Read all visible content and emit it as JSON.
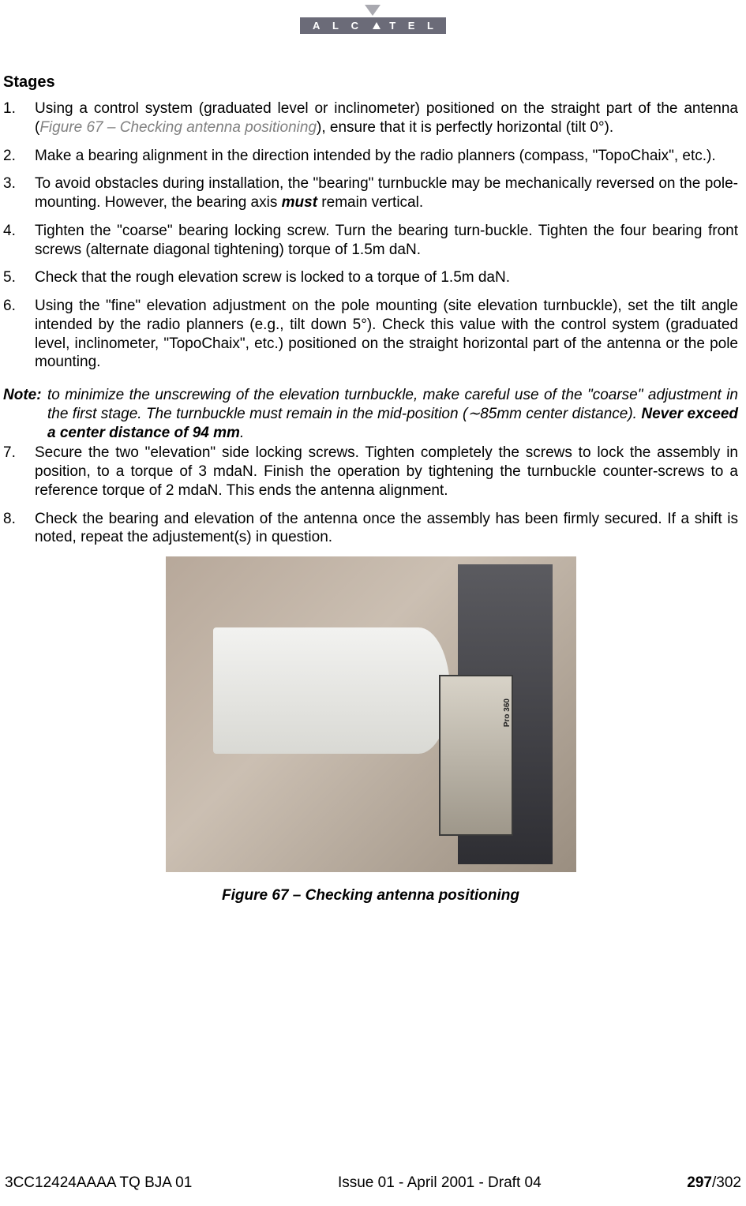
{
  "logo": {
    "text": "A L C T E L"
  },
  "section_heading": "Stages",
  "list": [
    {
      "num": "1.",
      "pre": "Using a control system (graduated level or inclinometer) positioned on the straight part of the antenna (",
      "figref": "Figure 67 – Checking antenna positioning",
      "post": "), ensure that it is perfectly horizontal (tilt 0°)."
    },
    {
      "num": "2.",
      "text": "Make a bearing alignment in the direction intended by the radio planners (compass, \"TopoChaix\", etc.)."
    },
    {
      "num": "3.",
      "pre": "To avoid obstacles during installation, the \"bearing\" turnbuckle may be mechanically reversed on the pole-mounting. However, the bearing axis ",
      "must": "must",
      "post": " remain vertical."
    },
    {
      "num": "4.",
      "text": "Tighten the \"coarse\" bearing locking screw. Turn the bearing turn-buckle. Tighten the four bearing front screws (alternate diagonal tightening) torque of 1.5m daN."
    },
    {
      "num": "5.",
      "text": "Check that the rough elevation screw is locked to a torque of 1.5m daN."
    },
    {
      "num": "6.",
      "text": "Using the \"fine\" elevation adjustment on the pole mounting (site elevation turnbuckle), set the tilt angle intended by the radio planners (e.g., tilt down 5°). Check this value with the control system (graduated level, inclinometer, \"TopoChaix\", etc.) positioned on the straight horizontal part of the antenna or the pole mounting."
    }
  ],
  "note": {
    "label": "Note:",
    "body_pre": " to minimize the unscrewing of the elevation turnbuckle, make careful use of the \"coarse\" adjustment in the first stage. The turnbuckle must remain in the mid-position (∼85mm center distance). ",
    "never": "Never exceed a center distance of 94 mm",
    "body_post": "."
  },
  "list2": [
    {
      "num": "7.",
      "text": "Secure the two \"elevation\" side locking screws. Tighten completely the screws to lock the assembly in position, to a torque of 3 mdaN. Finish the operation by tightening the turnbuckle counter-screws to a reference torque of 2 mdaN. This ends the antenna alignment."
    },
    {
      "num": "8.",
      "text": "Check the bearing and elevation of the antenna once the assembly has been firmly secured. If a shift is noted, repeat the adjustement(s) in question."
    }
  ],
  "figure": {
    "device_label": "Pro 360",
    "caption": "Figure 67 – Checking antenna positioning"
  },
  "footer": {
    "left": "3CC12424AAAA TQ BJA 01",
    "center": "Issue 01 - April 2001 - Draft 04",
    "page_bold": "297",
    "page_rest": "/302"
  }
}
